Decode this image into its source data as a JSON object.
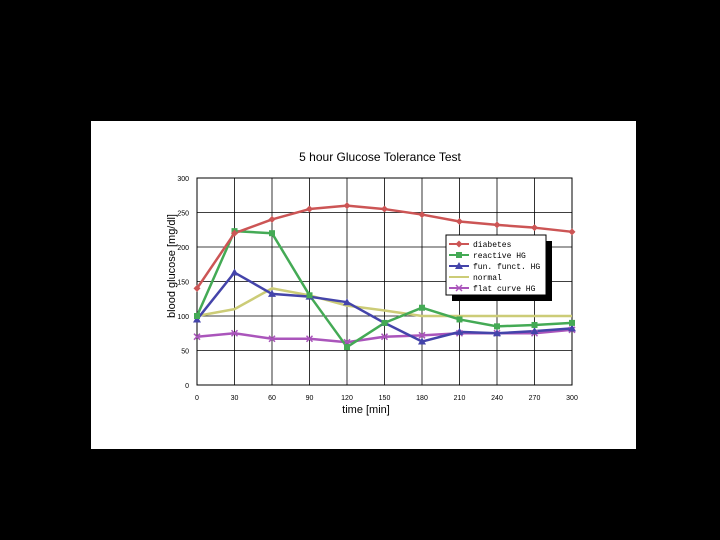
{
  "chart_data": {
    "type": "line",
    "title": "5 hour Glucose Tolerance Test",
    "xlabel": "time [min]",
    "ylabel": "blood glucose [mg/dl]",
    "x": [
      0,
      30,
      60,
      90,
      120,
      150,
      180,
      210,
      240,
      270,
      300
    ],
    "x_tick_labels": [
      "0",
      "30",
      "60",
      "90",
      "120",
      "150",
      "180",
      "210",
      "240",
      "270",
      "300"
    ],
    "y_tick_labels": [
      "0",
      "50",
      "100",
      "150",
      "200",
      "250",
      "300"
    ],
    "ylim": [
      0,
      300
    ],
    "xlim": [
      0,
      300
    ],
    "grid": true,
    "legend_position": "right",
    "series": [
      {
        "name": "diabetes",
        "color": "#cc5555",
        "marker": "diamond",
        "values": [
          140,
          220,
          240,
          255,
          260,
          255,
          247,
          237,
          232,
          228,
          222
        ]
      },
      {
        "name": "reactive HG",
        "color": "#44aa55",
        "marker": "square",
        "values": [
          100,
          223,
          220,
          130,
          55,
          90,
          112,
          95,
          85,
          87,
          90
        ]
      },
      {
        "name": "fun. funct. HG",
        "color": "#4444aa",
        "marker": "triangle",
        "values": [
          95,
          163,
          132,
          128,
          120,
          90,
          63,
          77,
          75,
          78,
          82
        ]
      },
      {
        "name": "normal",
        "color": "#cccc77",
        "marker": "none",
        "values": [
          100,
          110,
          140,
          130,
          115,
          108,
          100,
          100,
          100,
          100,
          100
        ]
      },
      {
        "name": "flat curve HG",
        "color": "#aa55bb",
        "marker": "x",
        "values": [
          70,
          75,
          67,
          67,
          62,
          70,
          72,
          75,
          75,
          75,
          80
        ]
      }
    ]
  }
}
